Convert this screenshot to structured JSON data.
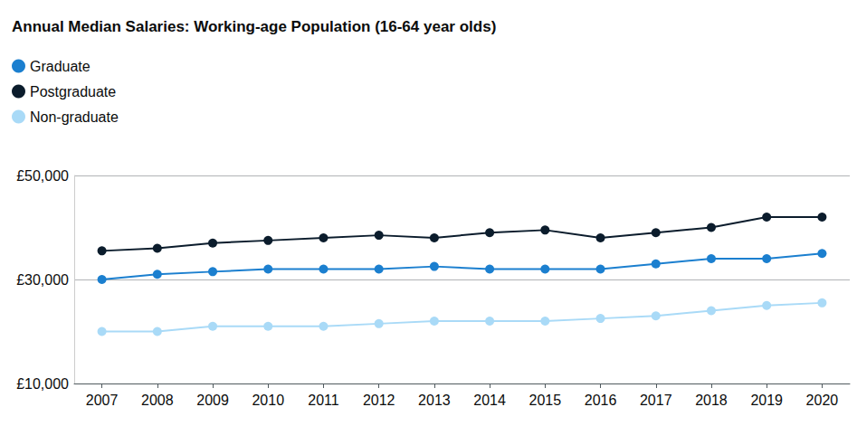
{
  "chart_data": {
    "type": "line",
    "title": "Annual Median Salaries: Working-age Population (16-64 year olds)",
    "categories": [
      "2007",
      "2008",
      "2009",
      "2010",
      "2011",
      "2012",
      "2013",
      "2014",
      "2015",
      "2016",
      "2017",
      "2018",
      "2019",
      "2020"
    ],
    "series": [
      {
        "name": "Graduate",
        "color": "#1b7fcf",
        "values": [
          30000,
          31000,
          31500,
          32000,
          32000,
          32000,
          32500,
          32000,
          32000,
          32000,
          33000,
          34000,
          34000,
          35000
        ]
      },
      {
        "name": "Postgraduate",
        "color": "#0b1c2c",
        "values": [
          35500,
          36000,
          37000,
          37500,
          38000,
          38500,
          38000,
          39000,
          39500,
          38000,
          39000,
          40000,
          42000,
          42000
        ]
      },
      {
        "name": "Non-graduate",
        "color": "#a9daf7",
        "values": [
          20000,
          20000,
          21000,
          21000,
          21000,
          21500,
          22000,
          22000,
          22000,
          22500,
          23000,
          24000,
          25000,
          25500
        ]
      }
    ],
    "ylim": [
      10000,
      50000
    ],
    "yticks": [
      {
        "value": 10000,
        "label": "£10,000"
      },
      {
        "value": 30000,
        "label": "£30,000"
      },
      {
        "value": 50000,
        "label": "£50,000"
      }
    ],
    "grid": true,
    "legend": "top-left",
    "marker": "circle"
  }
}
